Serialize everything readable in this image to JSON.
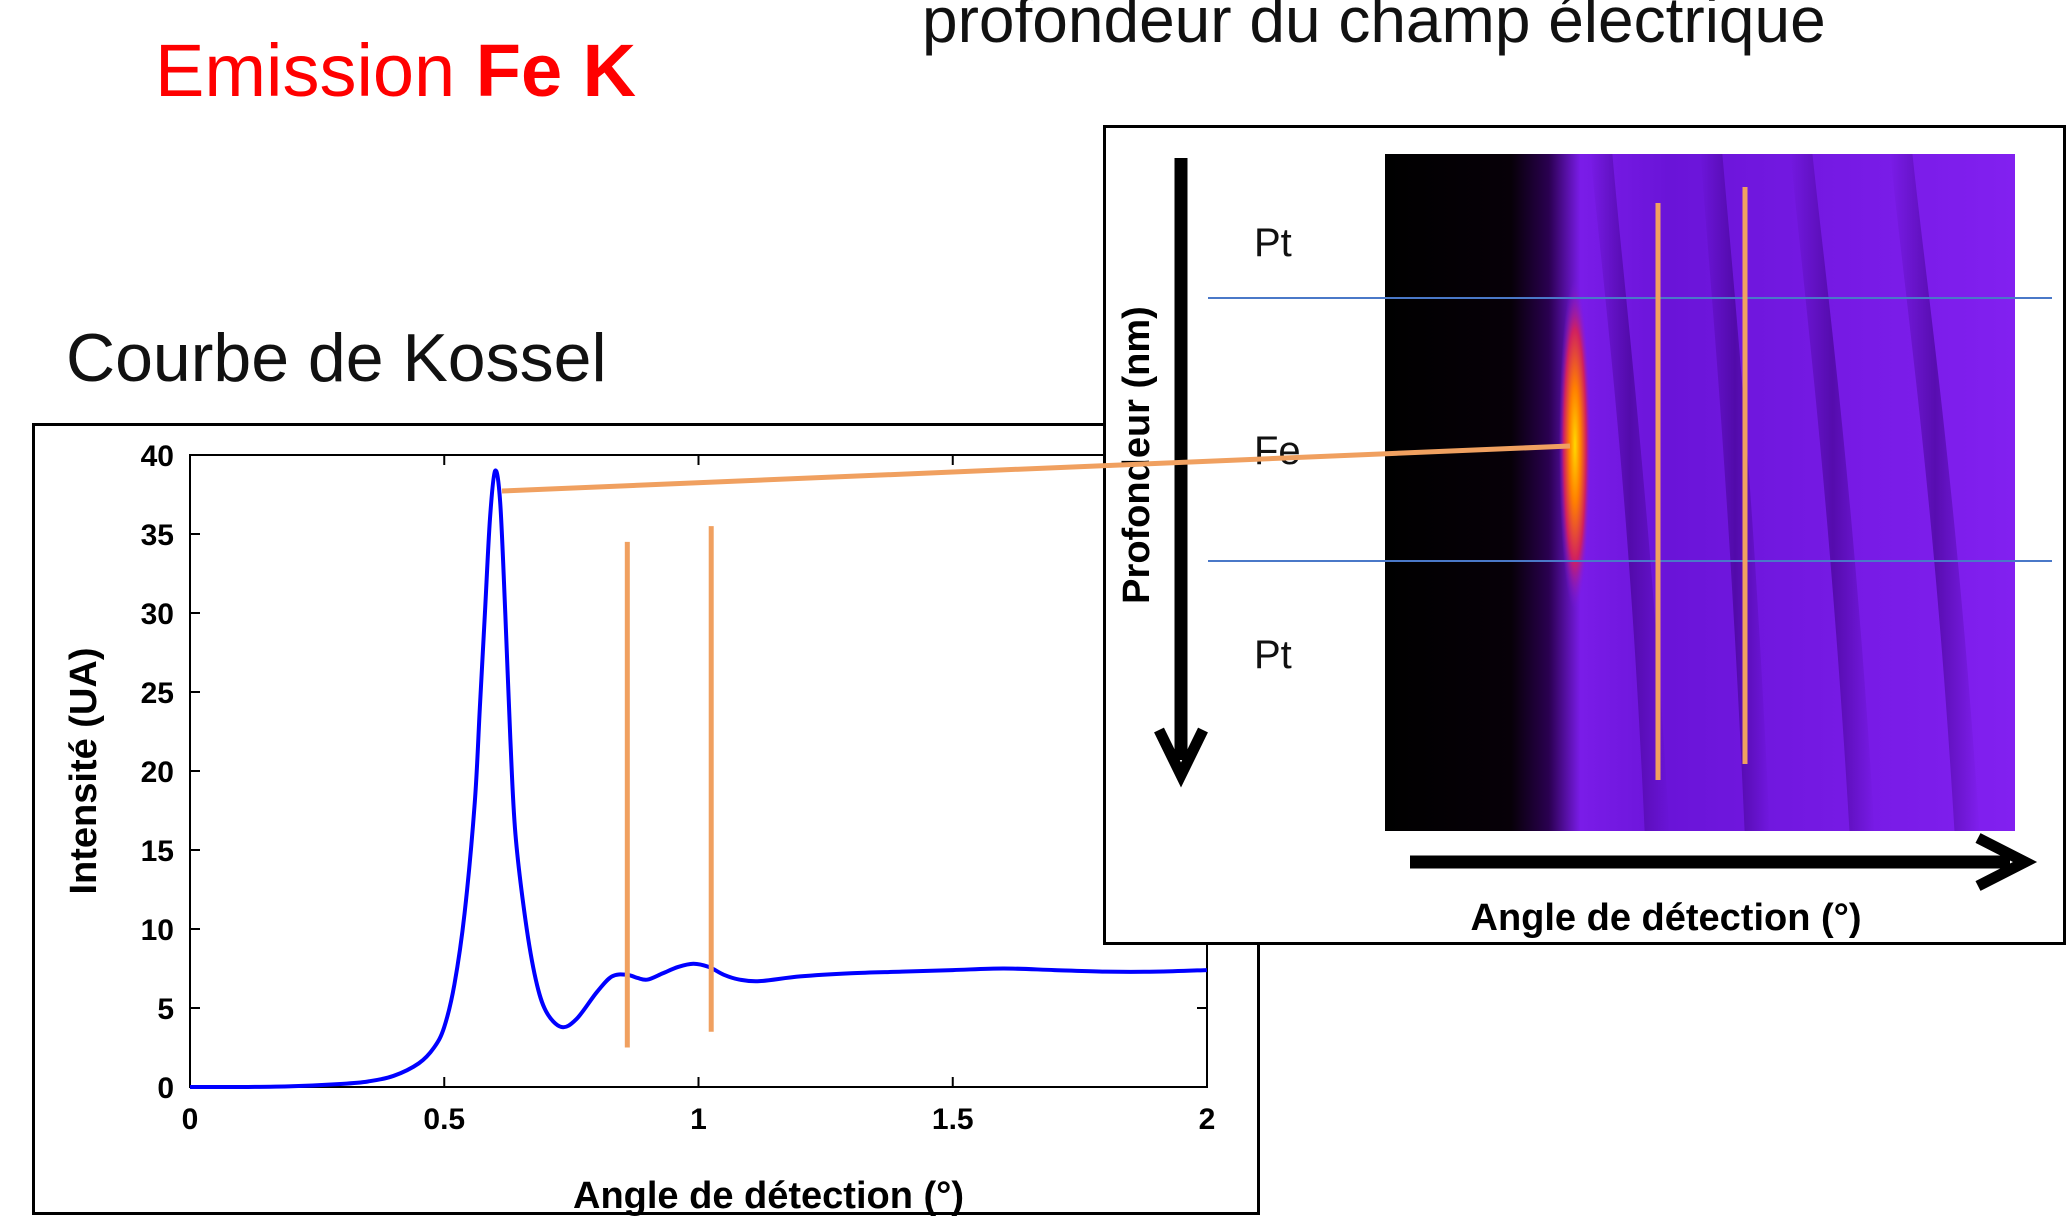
{
  "header": {
    "emission_prefix": "Emission ",
    "emission_element": "Fe K",
    "top_title": "profondeur du champ électrique",
    "kossel_title": "Courbe de Kossel"
  },
  "colors": {
    "emission": "#ff0000",
    "curve": "#0000ff",
    "marker": "#f0a060",
    "layer_line": "#4a78c8"
  },
  "chart_data": [
    {
      "type": "line",
      "title": "",
      "xlabel": "Angle de détection (°)",
      "ylabel": "Intensité (UA)",
      "xlim": [
        0,
        2
      ],
      "ylim": [
        0,
        40
      ],
      "xticks": [
        0,
        0.5,
        1,
        1.5,
        2
      ],
      "xtick_labels": [
        "0",
        "0.5",
        "1",
        "1.5",
        "2"
      ],
      "yticks": [
        0,
        5,
        10,
        15,
        20,
        25,
        30,
        35,
        40
      ],
      "ytick_labels": [
        "0",
        "5",
        "10",
        "15",
        "20",
        "25",
        "30",
        "35",
        "40"
      ],
      "grid": false,
      "series": [
        {
          "color": "#0000ff",
          "x": [
            0,
            0.1,
            0.2,
            0.3,
            0.35,
            0.4,
            0.45,
            0.48,
            0.5,
            0.52,
            0.54,
            0.56,
            0.57,
            0.58,
            0.59,
            0.6,
            0.61,
            0.62,
            0.63,
            0.64,
            0.66,
            0.68,
            0.7,
            0.73,
            0.76,
            0.8,
            0.83,
            0.86,
            0.88,
            0.9,
            0.93,
            0.96,
            0.99,
            1.02,
            1.05,
            1.08,
            1.12,
            1.2,
            1.3,
            1.4,
            1.5,
            1.6,
            1.7,
            1.8,
            1.9,
            2.0
          ],
          "y": [
            0,
            0,
            0.05,
            0.2,
            0.35,
            0.7,
            1.5,
            2.5,
            3.8,
            6.5,
            11,
            18,
            24,
            30,
            36,
            39,
            37,
            30,
            22,
            16,
            10.5,
            6.8,
            4.8,
            3.8,
            4.3,
            6.0,
            7.0,
            7.1,
            6.9,
            6.8,
            7.2,
            7.6,
            7.8,
            7.6,
            7.1,
            6.8,
            6.7,
            7.0,
            7.2,
            7.3,
            7.4,
            7.5,
            7.4,
            7.3,
            7.3,
            7.4
          ]
        }
      ],
      "annotations": [
        {
          "type": "vline",
          "x": 0.86,
          "y_range": [
            2.5,
            34.5
          ]
        },
        {
          "type": "vline",
          "x": 1.025,
          "y_range": [
            3.5,
            35.5
          ]
        }
      ]
    },
    {
      "type": "heatmap",
      "title": "",
      "xlabel": "Angle de détection (°)",
      "ylabel": "Profondeur (nm)",
      "colormap": [
        "#000000",
        "#3a0070",
        "#7a18e8",
        "#ff6a00",
        "#ffd000"
      ],
      "layers": [
        "Pt",
        "Fe",
        "Pt"
      ]
    }
  ]
}
